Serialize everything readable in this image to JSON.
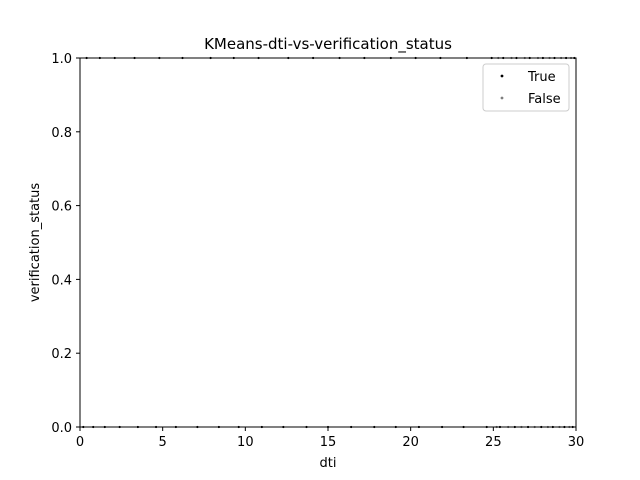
{
  "chart_data": {
    "type": "scatter",
    "title": "KMeans-dti-vs-verification_status",
    "xlabel": "dti",
    "ylabel": "verification_status",
    "xlim": [
      0,
      30
    ],
    "ylim": [
      0,
      1
    ],
    "xticks": [
      0,
      5,
      10,
      15,
      20,
      25,
      30
    ],
    "yticks": [
      0.0,
      0.2,
      0.4,
      0.6,
      0.8,
      1.0
    ],
    "ytick_labels": [
      "0.0",
      "0.2",
      "0.4",
      "0.6",
      "0.8",
      "1.0"
    ],
    "grid": false,
    "legend": {
      "placement": "upper-right"
    },
    "series": [
      {
        "name": "True",
        "color": "#000000",
        "points": [
          [
            0.2,
            0.0
          ],
          [
            0.8,
            0.0
          ],
          [
            1.5,
            0.0
          ],
          [
            2.4,
            0.0
          ],
          [
            3.5,
            0.0
          ],
          [
            4.6,
            0.0
          ],
          [
            5.8,
            0.0
          ],
          [
            7.1,
            0.0
          ],
          [
            8.4,
            0.0
          ],
          [
            9.6,
            0.0
          ],
          [
            11.0,
            0.0
          ],
          [
            12.3,
            0.0
          ],
          [
            13.7,
            0.0
          ],
          [
            15.0,
            0.0
          ],
          [
            16.4,
            0.0
          ],
          [
            17.8,
            0.0
          ],
          [
            19.1,
            0.0
          ],
          [
            20.5,
            0.0
          ],
          [
            21.9,
            0.0
          ],
          [
            23.2,
            0.0
          ],
          [
            24.6,
            0.0
          ],
          [
            25.4,
            0.0
          ],
          [
            26.3,
            0.0
          ],
          [
            27.1,
            0.0
          ],
          [
            27.9,
            0.0
          ],
          [
            28.6,
            0.0
          ],
          [
            29.3,
            0.0
          ],
          [
            29.8,
            0.0
          ],
          [
            0.4,
            1.0
          ],
          [
            1.2,
            1.0
          ],
          [
            2.1,
            1.0
          ],
          [
            3.3,
            1.0
          ],
          [
            4.8,
            1.0
          ],
          [
            6.2,
            1.0
          ],
          [
            7.9,
            1.0
          ],
          [
            9.3,
            1.0
          ],
          [
            10.8,
            1.0
          ],
          [
            12.6,
            1.0
          ],
          [
            14.1,
            1.0
          ],
          [
            15.7,
            1.0
          ],
          [
            17.2,
            1.0
          ],
          [
            18.8,
            1.0
          ],
          [
            20.3,
            1.0
          ],
          [
            21.8,
            1.0
          ],
          [
            23.4,
            1.0
          ],
          [
            24.9,
            1.0
          ],
          [
            25.6,
            1.0
          ],
          [
            26.4,
            1.0
          ],
          [
            27.2,
            1.0
          ],
          [
            28.0,
            1.0
          ],
          [
            28.7,
            1.0
          ],
          [
            29.4,
            1.0
          ],
          [
            29.9,
            1.0
          ]
        ]
      },
      {
        "name": "False",
        "color": "#7f7f7f",
        "points": [
          [
            25.2,
            0.0
          ],
          [
            25.9,
            0.0
          ],
          [
            26.7,
            0.0
          ],
          [
            27.5,
            0.0
          ],
          [
            28.3,
            0.0
          ],
          [
            29.0,
            0.0
          ],
          [
            29.6,
            0.0
          ],
          [
            25.3,
            1.0
          ],
          [
            26.1,
            1.0
          ],
          [
            26.9,
            1.0
          ],
          [
            27.7,
            1.0
          ],
          [
            28.4,
            1.0
          ],
          [
            29.1,
            1.0
          ],
          [
            29.7,
            1.0
          ]
        ]
      }
    ]
  }
}
